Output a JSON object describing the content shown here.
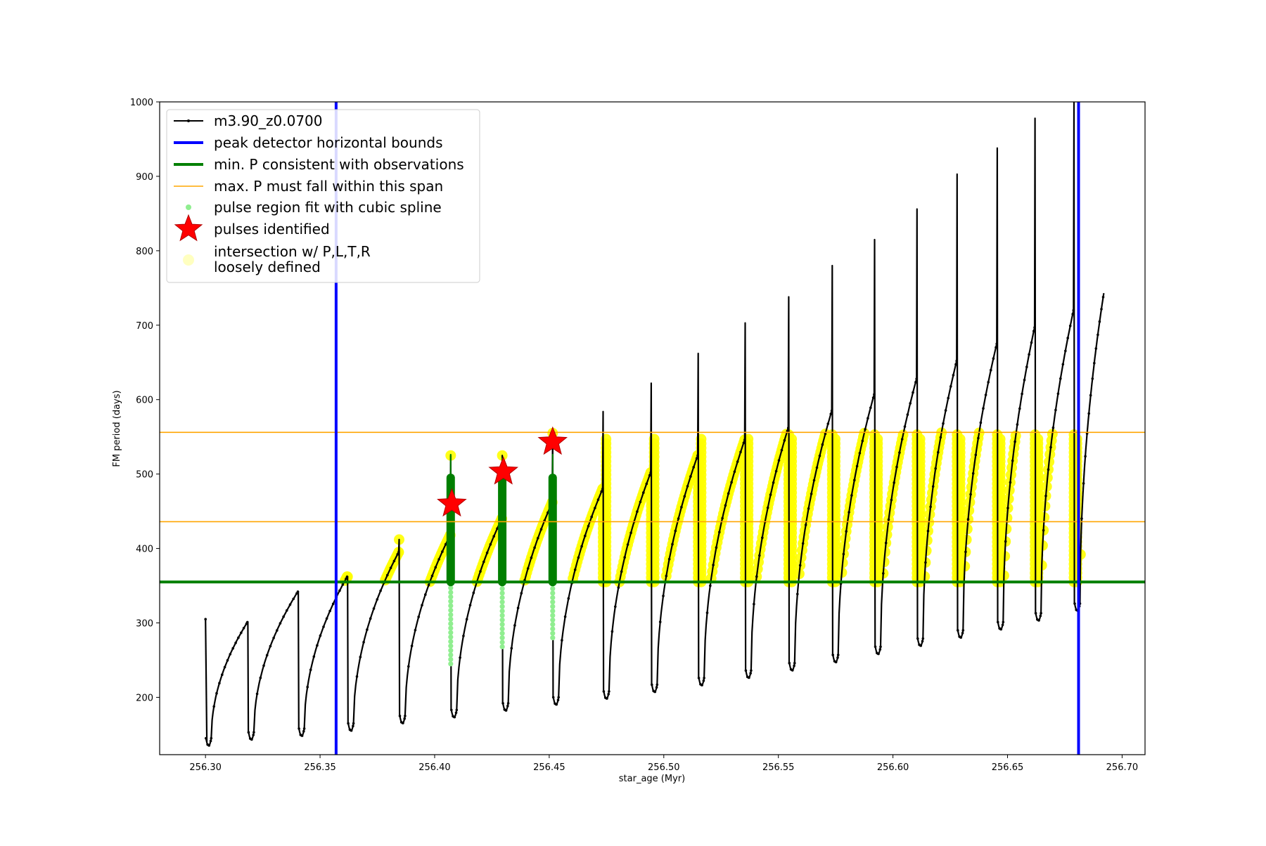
{
  "chart_data": {
    "type": "line",
    "xlabel": "star_age (Myr)",
    "ylabel": "FM period (days)",
    "xlim": [
      256.28,
      256.71
    ],
    "ylim": [
      123,
      1000
    ],
    "xticks": [
      256.3,
      256.35,
      256.4,
      256.45,
      256.5,
      256.55,
      256.6,
      256.65,
      256.7
    ],
    "xtick_labels": [
      "256.30",
      "256.35",
      "256.40",
      "256.45",
      "256.50",
      "256.55",
      "256.60",
      "256.65",
      "256.70"
    ],
    "yticks": [
      200,
      300,
      400,
      500,
      600,
      700,
      800,
      900,
      1000
    ],
    "ytick_labels": [
      "200",
      "300",
      "400",
      "500",
      "600",
      "700",
      "800",
      "900",
      "1000"
    ],
    "grid": false,
    "legend_placement": "upper-left",
    "legend": [
      {
        "label": "m3.90_z0.0700",
        "style": "line-dot",
        "color": "#000000"
      },
      {
        "label": "peak detector horizontal bounds",
        "style": "line",
        "color": "#0000ff"
      },
      {
        "label": "min. P consistent with observations",
        "style": "line",
        "color": "#007f00"
      },
      {
        "label": "max. P must fall within this span",
        "style": "thin-line",
        "color": "#ffa500"
      },
      {
        "label": "pulse region fit with cubic spline",
        "style": "dot",
        "color": "#90ee90"
      },
      {
        "label": "pulses identified",
        "style": "star",
        "color": "#ff0000"
      },
      {
        "label": "intersection w/ P,L,T,R\nloosely defined",
        "style": "big-dot",
        "color": "#ffffc0"
      }
    ],
    "colors": {
      "track": "#000000",
      "bounds": "#0000ff",
      "minP": "#007f00",
      "maxP": "#ffa500",
      "spline": "#90ee90",
      "pulse_region": "#007f00",
      "star": "#ff0000",
      "star_edge": "#b00000",
      "intersection": "#ffff00"
    },
    "vertical_bounds": [
      256.357,
      256.681
    ],
    "min_P": 355,
    "max_P_span": [
      436,
      556
    ],
    "start": {
      "x": 256.3,
      "y_top": 305,
      "y_bottom": 140
    },
    "cycles": [
      {
        "pulse_x": 256.3185,
        "peak": 301,
        "spike": 301,
        "min": 143
      },
      {
        "pulse_x": 256.3405,
        "peak": 342,
        "spike": 342,
        "min": 148
      },
      {
        "pulse_x": 256.362,
        "peak": 362,
        "spike": 362,
        "min": 155
      },
      {
        "pulse_x": 256.3845,
        "peak": 395,
        "spike": 412,
        "min": 165
      },
      {
        "pulse_x": 256.407,
        "peak": 418,
        "spike": 525,
        "min": 173
      },
      {
        "pulse_x": 256.4295,
        "peak": 440,
        "spike": 525,
        "min": 182
      },
      {
        "pulse_x": 256.4515,
        "peak": 462,
        "spike": 555,
        "min": 190
      },
      {
        "pulse_x": 256.4735,
        "peak": 480,
        "spike": 584,
        "min": 198
      },
      {
        "pulse_x": 256.4945,
        "peak": 502,
        "spike": 622,
        "min": 207
      },
      {
        "pulse_x": 256.515,
        "peak": 525,
        "spike": 662,
        "min": 216
      },
      {
        "pulse_x": 256.5355,
        "peak": 546,
        "spike": 703,
        "min": 226
      },
      {
        "pulse_x": 256.5545,
        "peak": 562,
        "spike": 738,
        "min": 236
      },
      {
        "pulse_x": 256.5735,
        "peak": 585,
        "spike": 780,
        "min": 247
      },
      {
        "pulse_x": 256.592,
        "peak": 607,
        "spike": 815,
        "min": 258
      },
      {
        "pulse_x": 256.6105,
        "peak": 628,
        "spike": 856,
        "min": 269
      },
      {
        "pulse_x": 256.628,
        "peak": 652,
        "spike": 903,
        "min": 280
      },
      {
        "pulse_x": 256.6455,
        "peak": 675,
        "spike": 938,
        "min": 291
      },
      {
        "pulse_x": 256.662,
        "peak": 697,
        "spike": 978,
        "min": 303
      },
      {
        "pulse_x": 256.679,
        "peak": 720,
        "spike": 1000,
        "min": 316
      }
    ],
    "end": {
      "x": 256.692,
      "y": 743
    },
    "spline_regions": [
      {
        "x": 256.407,
        "from": 245,
        "to": 495
      },
      {
        "x": 256.4295,
        "from": 268,
        "to": 490
      },
      {
        "x": 256.4515,
        "from": 280,
        "to": 495
      }
    ],
    "pulse_points": [
      {
        "x": 256.4075,
        "y": 460
      },
      {
        "x": 256.43,
        "y": 503
      },
      {
        "x": 256.4515,
        "y": 543
      }
    ]
  }
}
